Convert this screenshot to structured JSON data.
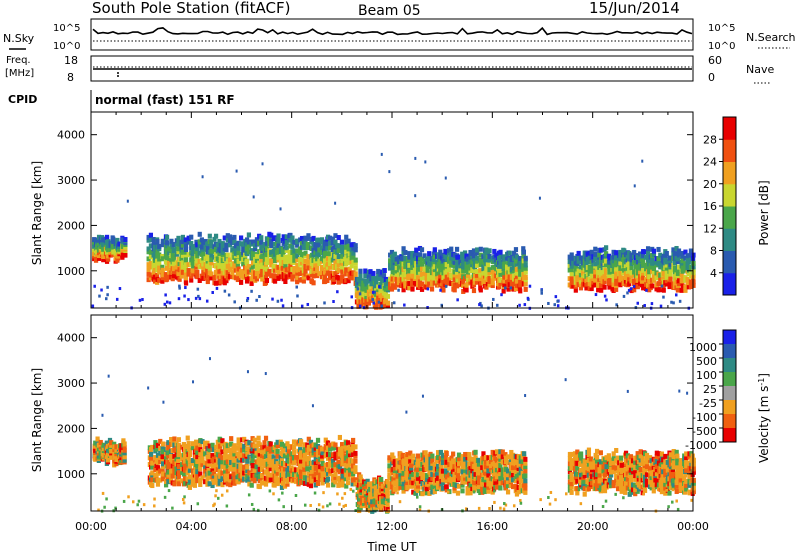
{
  "header": {
    "station": "South Pole Station (fitACF)",
    "beam": "Beam 05",
    "date": "15/Jun/2014"
  },
  "strip_sky": {
    "left_label": "N.Sky",
    "right_label": "N.Search",
    "left_ticks": [
      "10^5",
      "10^0"
    ],
    "right_ticks": [
      "10^5",
      "10^0"
    ]
  },
  "strip_freq": {
    "left_label_1": "Freq.",
    "left_label_2": "[MHz]",
    "right_label": "Nave",
    "left_ticks": [
      "18",
      "8"
    ],
    "right_ticks": [
      "60",
      "0"
    ]
  },
  "cpid": {
    "label": "CPID",
    "value": "normal (fast) 151 RF"
  },
  "chart_data": [
    {
      "type": "heatmap",
      "quantity": "Power",
      "ylabel": "Slant Range [km]",
      "ylim": [
        180,
        4500
      ],
      "yticks": [
        1000,
        2000,
        3000,
        4000
      ],
      "xlim": [
        0,
        24
      ],
      "colorbar": {
        "label": "Power [dB]",
        "range": [
          0,
          32
        ],
        "ticks": [
          "4",
          "8",
          "12",
          "16",
          "20",
          "24",
          "28"
        ],
        "colors": [
          "#1a21e8",
          "#2a5bb0",
          "#2e8a84",
          "#4aa64a",
          "#c9d630",
          "#f0a020",
          "#f05010",
          "#e80000"
        ]
      },
      "echo_bands": [
        {
          "t_start": 0.0,
          "t_end": 1.3,
          "range_low": 1300,
          "range_high": 1750
        },
        {
          "t_start": 2.2,
          "t_end": 10.5,
          "range_low": 800,
          "range_high": 1800
        },
        {
          "t_start": 10.5,
          "t_end": 11.8,
          "range_low": 250,
          "range_high": 1000
        },
        {
          "t_start": 11.8,
          "t_end": 17.3,
          "range_low": 650,
          "range_high": 1500
        },
        {
          "t_start": 19.0,
          "t_end": 24.0,
          "range_low": 650,
          "range_high": 1500
        }
      ]
    },
    {
      "type": "heatmap",
      "quantity": "Velocity",
      "ylabel": "Slant Range [km]",
      "xlabel": "Time UT",
      "ylim": [
        180,
        4500
      ],
      "yticks": [
        1000,
        2000,
        3000,
        4000
      ],
      "xlim": [
        0,
        24
      ],
      "xticks": [
        "00:00",
        "04:00",
        "08:00",
        "12:00",
        "16:00",
        "20:00",
        "00:00"
      ],
      "colorbar": {
        "label": "Velocity [m s^-1]",
        "ticks": [
          "1000",
          "500",
          "100",
          "25",
          "-25",
          "-100",
          "-500",
          "-1000"
        ],
        "colors": [
          "#1a21e8",
          "#2a5bb0",
          "#2e8a84",
          "#4aa64a",
          "#a0a0a0",
          "#f0a020",
          "#f06010",
          "#e80000"
        ]
      },
      "echo_bands": [
        {
          "t_start": 0.0,
          "t_end": 1.3,
          "range_low": 1300,
          "range_high": 1750
        },
        {
          "t_start": 2.2,
          "t_end": 10.5,
          "range_low": 800,
          "range_high": 1800
        },
        {
          "t_start": 10.5,
          "t_end": 11.8,
          "range_low": 250,
          "range_high": 1000
        },
        {
          "t_start": 11.8,
          "t_end": 17.3,
          "range_low": 650,
          "range_high": 1500
        },
        {
          "t_start": 19.0,
          "t_end": 24.0,
          "range_low": 650,
          "range_high": 1500
        }
      ]
    }
  ]
}
